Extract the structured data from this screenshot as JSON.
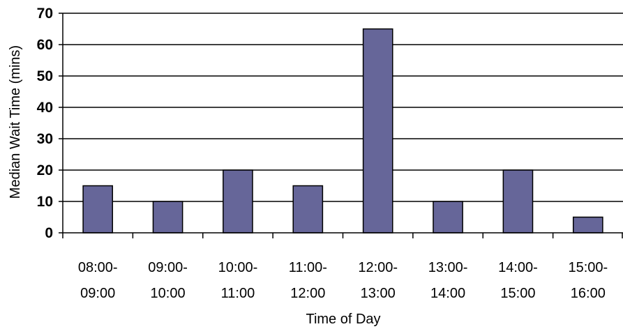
{
  "chart_data": {
    "type": "bar",
    "categories": [
      [
        "08:00-",
        "09:00"
      ],
      [
        "09:00-",
        "10:00"
      ],
      [
        "10:00-",
        "11:00"
      ],
      [
        "11:00-",
        "12:00"
      ],
      [
        "12:00-",
        "13:00"
      ],
      [
        "13:00-",
        "14:00"
      ],
      [
        "14:00-",
        "15:00"
      ],
      [
        "15:00-",
        "16:00"
      ]
    ],
    "values": [
      15,
      10,
      20,
      15,
      65,
      10,
      20,
      5
    ],
    "xlabel": "Time of Day",
    "ylabel": "Median Wait Time (mins)",
    "ylim": [
      0,
      70
    ],
    "yticks": [
      "0",
      "10",
      "20",
      "30",
      "40",
      "50",
      "60",
      "70"
    ],
    "grid": true,
    "legend": "none",
    "colors": {
      "bar": "#666699",
      "bar_edge": "#000000",
      "grid": "#000000"
    }
  }
}
